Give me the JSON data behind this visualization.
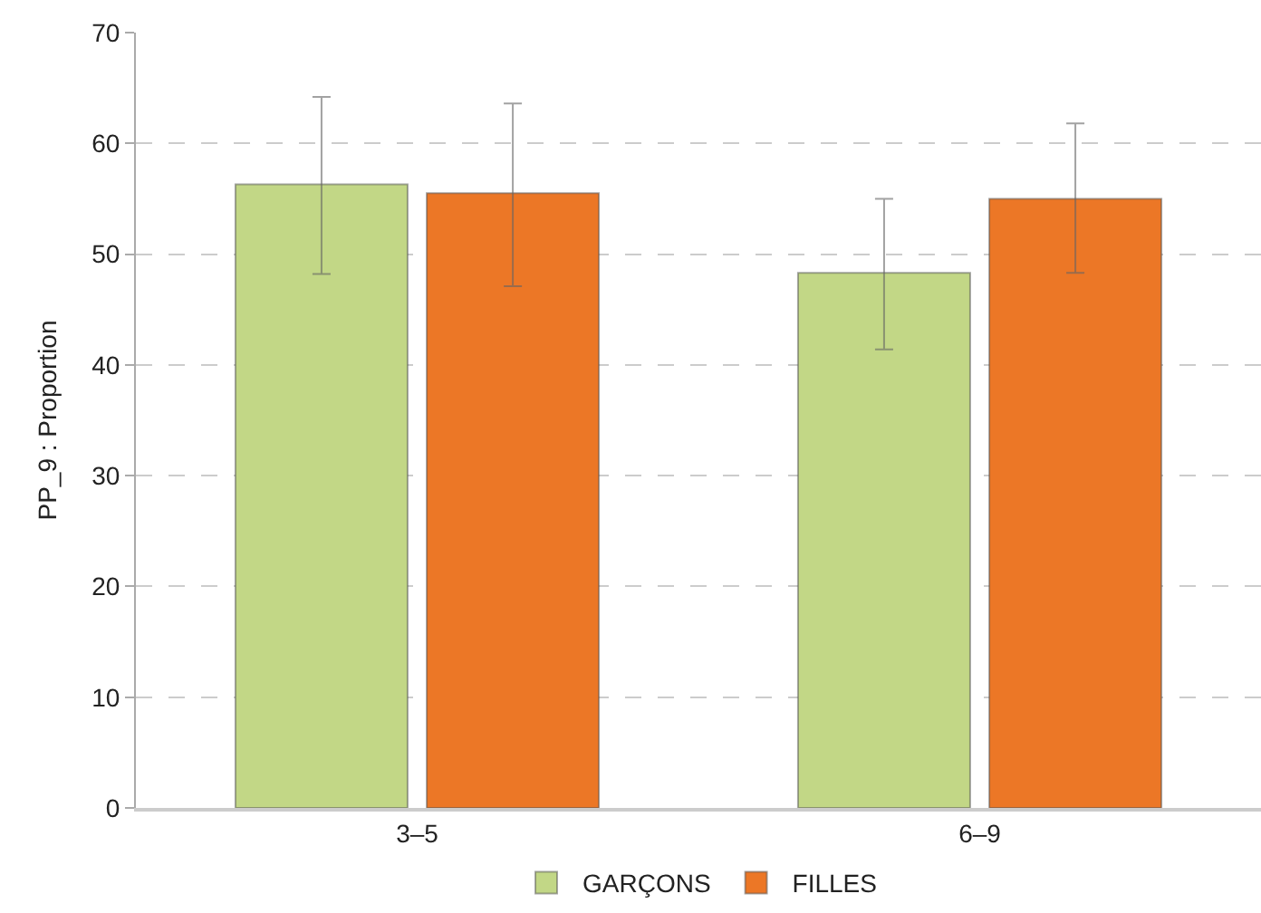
{
  "chart_data": {
    "type": "bar",
    "ylabel": "PP_9 : Proportion",
    "categories": [
      "3–5",
      "6–9"
    ],
    "series": [
      {
        "name": "GARÇONS",
        "color": "#c2d786",
        "values": [
          56.3,
          48.3
        ],
        "errors": [
          [
            48.2,
            64.2
          ],
          [
            41.4,
            55.0
          ]
        ]
      },
      {
        "name": "FILLES",
        "color": "#ec7726",
        "values": [
          55.5,
          55.0
        ],
        "errors": [
          [
            47.1,
            63.6
          ],
          [
            48.3,
            61.8
          ]
        ]
      }
    ],
    "ylim": [
      0,
      70
    ],
    "yticks": [
      0,
      10,
      20,
      30,
      40,
      50,
      60,
      70
    ],
    "grid": "y",
    "legend": "bottom"
  }
}
